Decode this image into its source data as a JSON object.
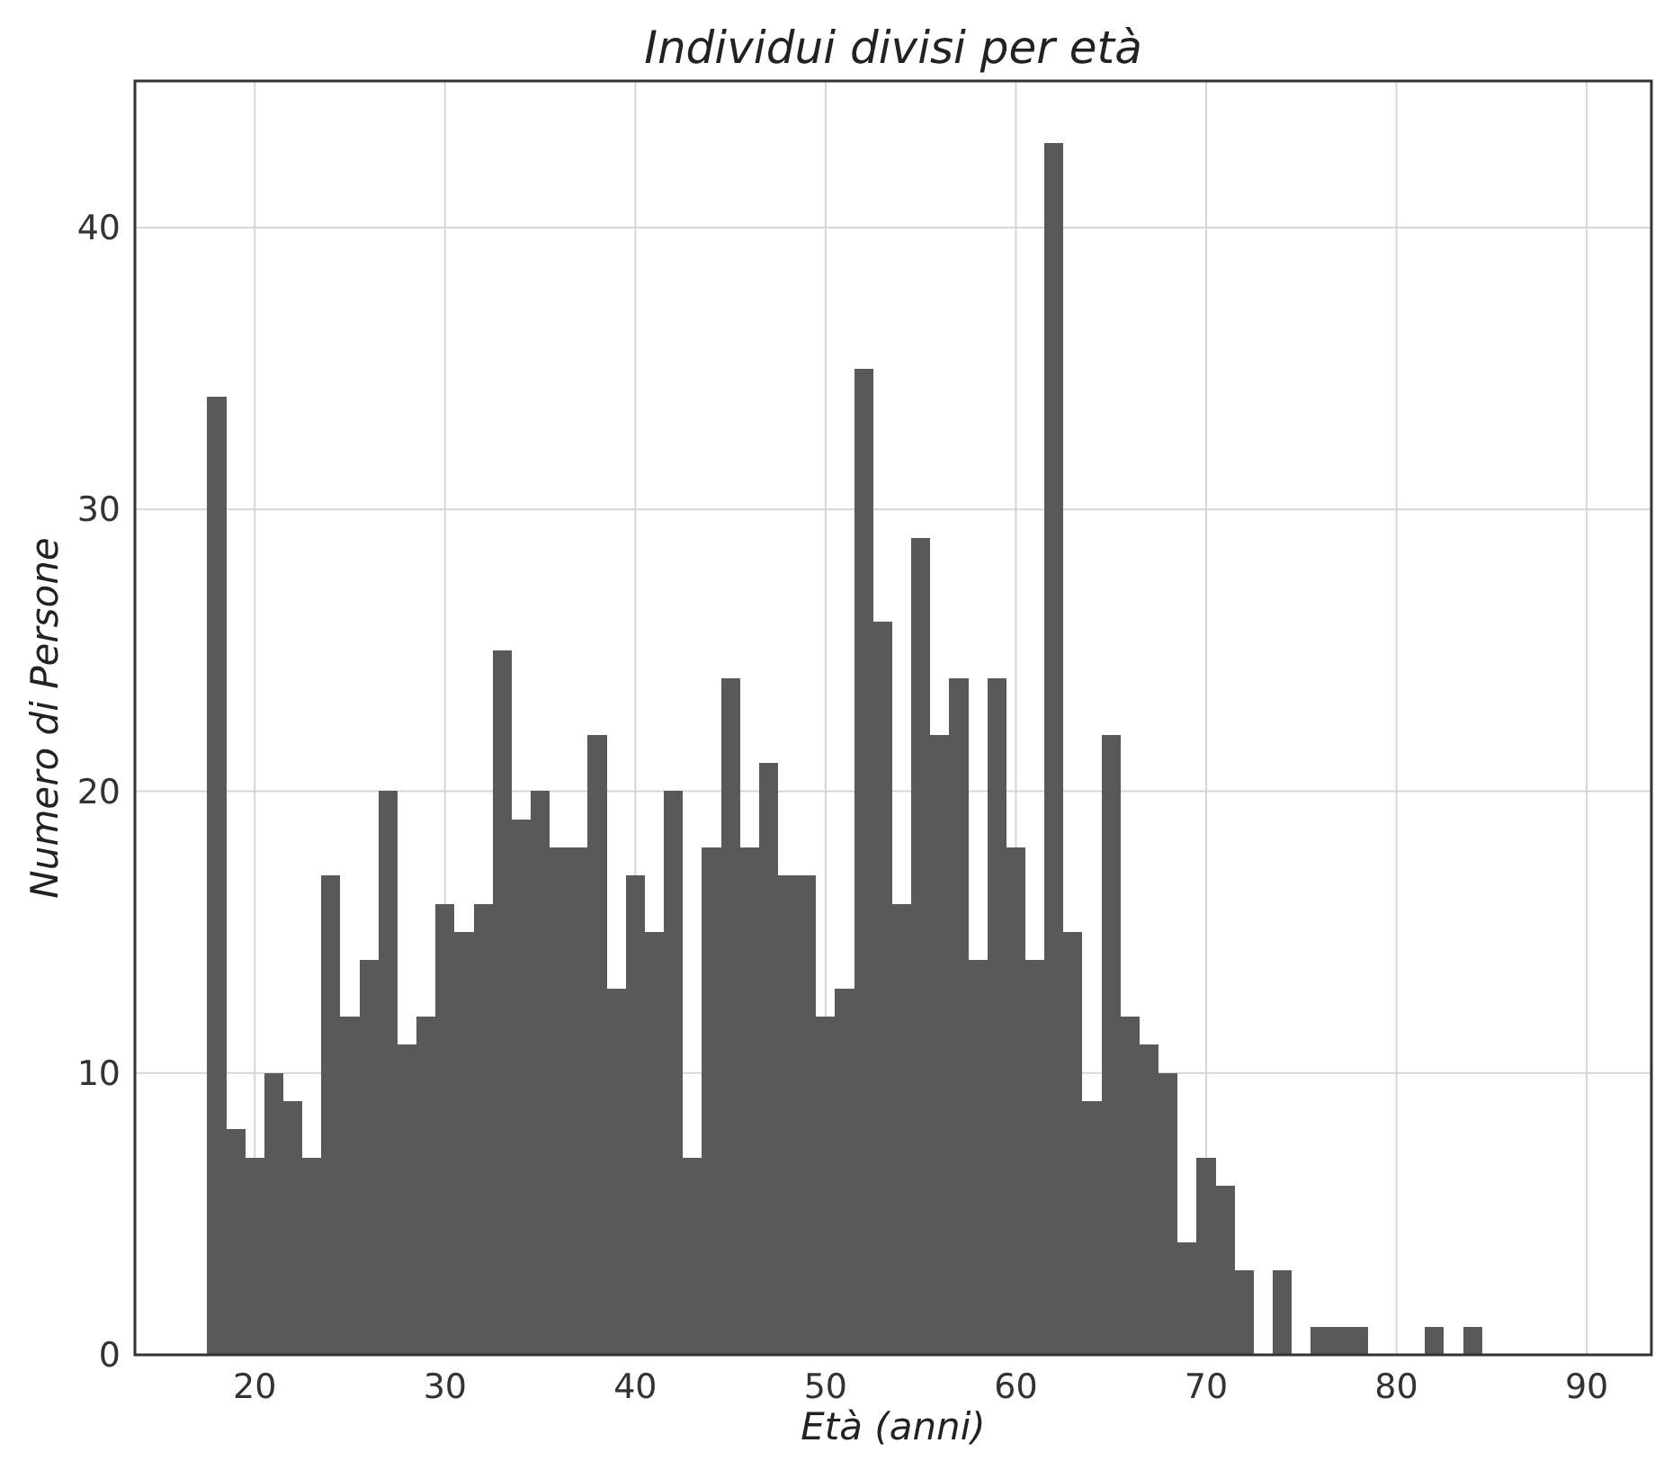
{
  "chart_data": {
    "type": "histogram",
    "title": "Individui divisi per età",
    "xlabel": "Età (anni)",
    "ylabel": "Numero di Persone",
    "bins": [
      17.5,
      18.5,
      19.5,
      20.5,
      21.5,
      22.5,
      23.5,
      24.5,
      25.5,
      26.5,
      27.5,
      28.5,
      29.5,
      30.5,
      31.5,
      32.5,
      33.5,
      34.5,
      35.5,
      36.5,
      37.5,
      38.5,
      39.5,
      40.5,
      41.5,
      42.5,
      43.5,
      44.5,
      45.5,
      46.5,
      47.5,
      48.5,
      49.5,
      50.5,
      51.5,
      52.5,
      53.5,
      54.5,
      55.5,
      56.5,
      57.5,
      58.5,
      59.5,
      60.5,
      61.5,
      62.5,
      63.5,
      64.5,
      65.5,
      66.5,
      67.5,
      68.5,
      69.5,
      70.5,
      71.5,
      72.5,
      73.5,
      74.5,
      75.5,
      76.5,
      77.5,
      78.5,
      79.5,
      80.5,
      81.5,
      82.5,
      83.5,
      84.5
    ],
    "values": [
      34,
      8,
      7,
      10,
      9,
      7,
      17,
      12,
      14,
      20,
      11,
      12,
      16,
      15,
      16,
      25,
      19,
      20,
      18,
      18,
      22,
      13,
      17,
      15,
      20,
      7,
      18,
      24,
      18,
      21,
      17,
      17,
      12,
      13,
      35,
      26,
      16,
      29,
      22,
      24,
      14,
      24,
      18,
      14,
      43,
      15,
      9,
      22,
      12,
      11,
      10,
      4,
      7,
      6,
      3,
      0,
      3,
      0,
      1,
      1,
      1,
      0,
      0,
      0,
      1,
      0,
      1
    ],
    "color": "#595959",
    "xlim": [
      13.7,
      93.4
    ],
    "ylim": [
      0,
      45.2
    ],
    "xticks": [
      20,
      30,
      40,
      50,
      60,
      70,
      80,
      90
    ],
    "yticks": [
      0,
      10,
      20,
      30,
      40
    ],
    "grid": true
  }
}
